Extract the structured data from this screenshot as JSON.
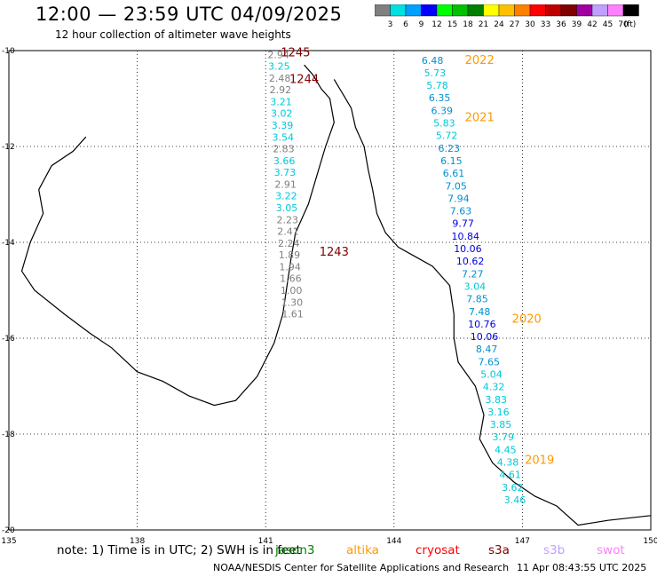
{
  "header": {
    "title": "12:00 — 23:59 UTC 04/09/2025",
    "subtitle": "12 hour collection of altimeter wave heights"
  },
  "colorbar": {
    "ticks": [
      "3",
      "6",
      "9",
      "12",
      "15",
      "18",
      "21",
      "24",
      "27",
      "30",
      "33",
      "36",
      "39",
      "42",
      "45",
      "70"
    ],
    "unit": "(ft)",
    "colors": [
      "#808080",
      "#00e0e0",
      "#00a0ff",
      "#0000ff",
      "#00ff00",
      "#00c000",
      "#008000",
      "#ffff00",
      "#ffc000",
      "#ff8000",
      "#ff0000",
      "#c00000",
      "#800000",
      "#a000a0",
      "#c0a0ff",
      "#ff80ff",
      "#000000"
    ]
  },
  "map": {
    "lat_labels": [
      "-10",
      "-12",
      "-14",
      "-16",
      "-18",
      "-20"
    ],
    "lon_labels": [
      "135",
      "138",
      "141",
      "144",
      "147",
      "150"
    ],
    "lat_range": [
      -20,
      -10
    ],
    "lon_range": [
      135,
      150
    ],
    "grid": "dotted",
    "land_outline_color": "#000000"
  },
  "pass_labels": [
    {
      "text": "1245",
      "color": "#800000"
    },
    {
      "text": "1244",
      "color": "#800000"
    },
    {
      "text": "1243",
      "color": "#800000"
    },
    {
      "text": "2022",
      "color": "#ff9900"
    },
    {
      "text": "2021",
      "color": "#ff9900"
    },
    {
      "text": "2020",
      "color": "#ff9900"
    },
    {
      "text": "2019",
      "color": "#ff9900"
    }
  ],
  "tracks": [
    {
      "values": [
        "2.94",
        "3.25",
        "2.48",
        "2.92",
        "3.21",
        "3.02",
        "3.39",
        "3.54",
        "2.83",
        "3.66",
        "3.73",
        "2.91",
        "3.22",
        "3.05",
        "2.23",
        "2.41",
        "2.24",
        "1.89",
        "1.94",
        "1.66",
        "1.00",
        "1.30",
        "1.61"
      ]
    },
    {
      "values": [
        "6.48",
        "5.73",
        "5.78",
        "6.35",
        "6.39",
        "5.83",
        "5.72",
        "6.23",
        "6.15",
        "6.61",
        "7.05",
        "7.94",
        "7.63",
        "9.77",
        "10.84",
        "10.06",
        "10.62",
        "7.27",
        "3.04",
        "7.85",
        "7.48",
        "10.76",
        "10.06",
        "8.47",
        "7.65",
        "5.04",
        "4.32",
        "3.83",
        "3.16",
        "3.85",
        "3.79",
        "4.45",
        "4.38",
        "4.61",
        "3.62",
        "3.46"
      ]
    }
  ],
  "footer": {
    "note_prefix": "note:  1) Time is in UTC;  2) SWH is in feet",
    "satellites": [
      {
        "text": "jason3",
        "color": "#008000"
      },
      {
        "text": "altika",
        "color": "#ff9900"
      },
      {
        "text": "cryosat",
        "color": "#ff0000"
      },
      {
        "text": "s3a",
        "color": "#800000"
      },
      {
        "text": "s3b",
        "color": "#c0a0ff"
      },
      {
        "text": "swot",
        "color": "#ff80ff"
      }
    ],
    "credit": "NOAA/NESDIS Center for Satellite Applications and Research",
    "timestamp": "11 Apr 08:43:55 UTC 2025"
  }
}
